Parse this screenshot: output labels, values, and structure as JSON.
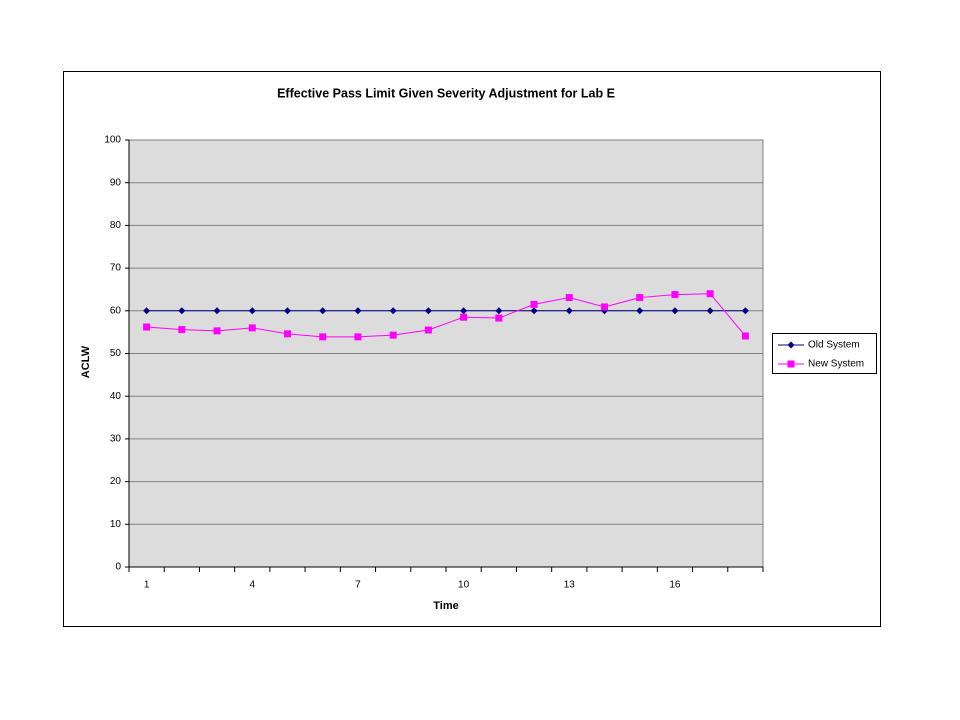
{
  "chart_data": {
    "type": "line",
    "title": "Effective Pass Limit Given Severity Adjustment for Lab E",
    "x_label": "Time",
    "y_label": "ACLW",
    "categories": [
      "1",
      null,
      null,
      "4",
      null,
      null,
      "7",
      null,
      null,
      "10",
      null,
      null,
      "13",
      null,
      null,
      "16",
      null,
      null
    ],
    "series": [
      {
        "name": "Old System",
        "color": "#000080",
        "marker": "diamond",
        "values": [
          60,
          60,
          60,
          60,
          60,
          60,
          60,
          60,
          60,
          60,
          60,
          60,
          60,
          60,
          60,
          60,
          60,
          60
        ]
      },
      {
        "name": "New System",
        "color": "#ff00ff",
        "marker": "square",
        "values": [
          56.2,
          55.6,
          55.3,
          56,
          54.6,
          53.9,
          53.9,
          54.3,
          55.5,
          58.5,
          58.3,
          61.5,
          63.1,
          60.9,
          63.1,
          63.8,
          64,
          54.1
        ]
      }
    ],
    "ylim": [
      0,
      100
    ],
    "yticks": [
      0,
      10,
      20,
      30,
      40,
      50,
      60,
      70,
      80,
      90,
      100
    ],
    "grid": true,
    "legend": "right"
  }
}
